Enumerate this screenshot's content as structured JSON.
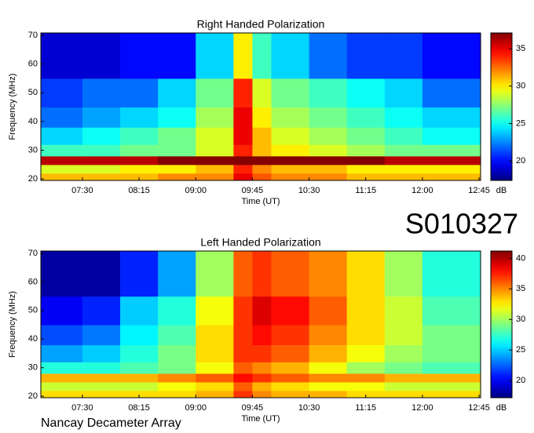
{
  "label": "S010327",
  "footer": "Nancay Decameter Array",
  "chart_data": [
    {
      "type": "heatmap",
      "title": "Right Handed Polarization",
      "x_label": "Time (UT)",
      "y_label": "Frequency (MHz)",
      "colorbar_label": "dB",
      "x_bins": [
        6.95,
        7.5,
        8.0,
        8.5,
        9.0,
        9.5,
        9.75,
        10.0,
        10.5,
        11.0,
        11.5,
        12.0,
        12.77
      ],
      "y_bins": [
        19.5,
        22,
        25,
        28,
        32,
        38,
        45,
        55,
        70.8
      ],
      "z": [
        [
          31,
          31,
          31,
          32,
          32,
          35,
          33,
          32,
          32,
          31,
          31,
          31
        ],
        [
          29,
          29,
          30,
          30,
          31,
          34,
          32,
          31,
          31,
          30,
          30,
          30
        ],
        [
          36,
          36,
          36,
          37,
          37,
          37,
          37,
          37,
          37,
          37,
          36,
          36
        ],
        [
          26,
          26,
          27,
          27,
          29,
          34,
          31,
          30,
          29,
          28,
          27,
          27
        ],
        [
          24,
          25,
          26,
          27,
          29,
          35,
          31,
          29,
          28,
          27,
          26,
          25
        ],
        [
          22,
          23,
          24,
          25,
          28,
          35,
          30,
          28,
          27,
          26,
          25,
          24
        ],
        [
          21,
          22,
          22,
          24,
          27,
          34,
          29,
          27,
          26,
          25,
          24,
          22
        ],
        [
          19,
          19,
          20,
          20,
          24,
          30,
          26,
          24,
          22,
          21,
          21,
          20
        ]
      ],
      "xlim": [
        6.95,
        12.77
      ],
      "xticks": [
        {
          "value": 7.5,
          "label": "07:30"
        },
        {
          "value": 8.25,
          "label": "08:15"
        },
        {
          "value": 9.0,
          "label": "09:00"
        },
        {
          "value": 9.75,
          "label": "09:45"
        },
        {
          "value": 10.5,
          "label": "10:30"
        },
        {
          "value": 11.25,
          "label": "11:15"
        },
        {
          "value": 12.0,
          "label": "12:00"
        },
        {
          "value": 12.75,
          "label": "12:45"
        }
      ],
      "ylim": [
        19.5,
        70.8
      ],
      "yticks": [
        20,
        30,
        40,
        50,
        60,
        70
      ],
      "zlim": [
        17.4,
        37.1
      ],
      "zticks": [
        20,
        25,
        30,
        35
      ],
      "colormap": "jet"
    },
    {
      "type": "heatmap",
      "title": "Left Handed Polarization",
      "x_label": "Time (UT)",
      "y_label": "Frequency (MHz)",
      "colorbar_label": "dB",
      "x_bins": [
        6.95,
        7.5,
        8.0,
        8.5,
        9.0,
        9.5,
        9.75,
        10.0,
        10.5,
        11.0,
        11.5,
        12.0,
        12.77
      ],
      "y_bins": [
        19.5,
        22,
        25,
        28,
        32,
        38,
        45,
        55,
        70.8
      ],
      "z": [
        [
          33,
          33,
          33,
          33,
          34,
          37,
          35,
          34,
          34,
          33,
          33,
          33
        ],
        [
          31,
          31,
          31,
          32,
          33,
          36,
          34,
          33,
          32,
          32,
          31,
          31
        ],
        [
          34,
          34,
          34,
          35,
          36,
          38,
          37,
          36,
          35,
          35,
          34,
          34
        ],
        [
          27,
          27,
          28,
          29,
          32,
          36,
          35,
          34,
          32,
          30,
          29,
          28
        ],
        [
          24,
          25,
          27,
          29,
          33,
          37,
          37,
          36,
          34,
          32,
          30,
          29
        ],
        [
          22,
          23,
          26,
          28,
          33,
          37,
          38,
          37,
          35,
          33,
          31,
          29
        ],
        [
          20,
          21,
          25,
          27,
          32,
          37,
          39,
          38,
          36,
          33,
          31,
          28
        ],
        [
          18,
          18,
          21,
          24,
          30,
          36,
          37,
          36,
          35,
          33,
          30,
          27
        ]
      ],
      "xlim": [
        6.95,
        12.77
      ],
      "xticks": [
        {
          "value": 7.5,
          "label": "07:30"
        },
        {
          "value": 8.25,
          "label": "08:15"
        },
        {
          "value": 9.0,
          "label": "09:00"
        },
        {
          "value": 9.75,
          "label": "09:45"
        },
        {
          "value": 10.5,
          "label": "10:30"
        },
        {
          "value": 11.25,
          "label": "11:15"
        },
        {
          "value": 12.0,
          "label": "12:00"
        },
        {
          "value": 12.75,
          "label": "12:45"
        }
      ],
      "ylim": [
        19.5,
        70.8
      ],
      "yticks": [
        20,
        30,
        40,
        50,
        60,
        70
      ],
      "zlim": [
        17.2,
        41.2
      ],
      "zticks": [
        20,
        25,
        30,
        35,
        40
      ],
      "colormap": "jet"
    }
  ]
}
